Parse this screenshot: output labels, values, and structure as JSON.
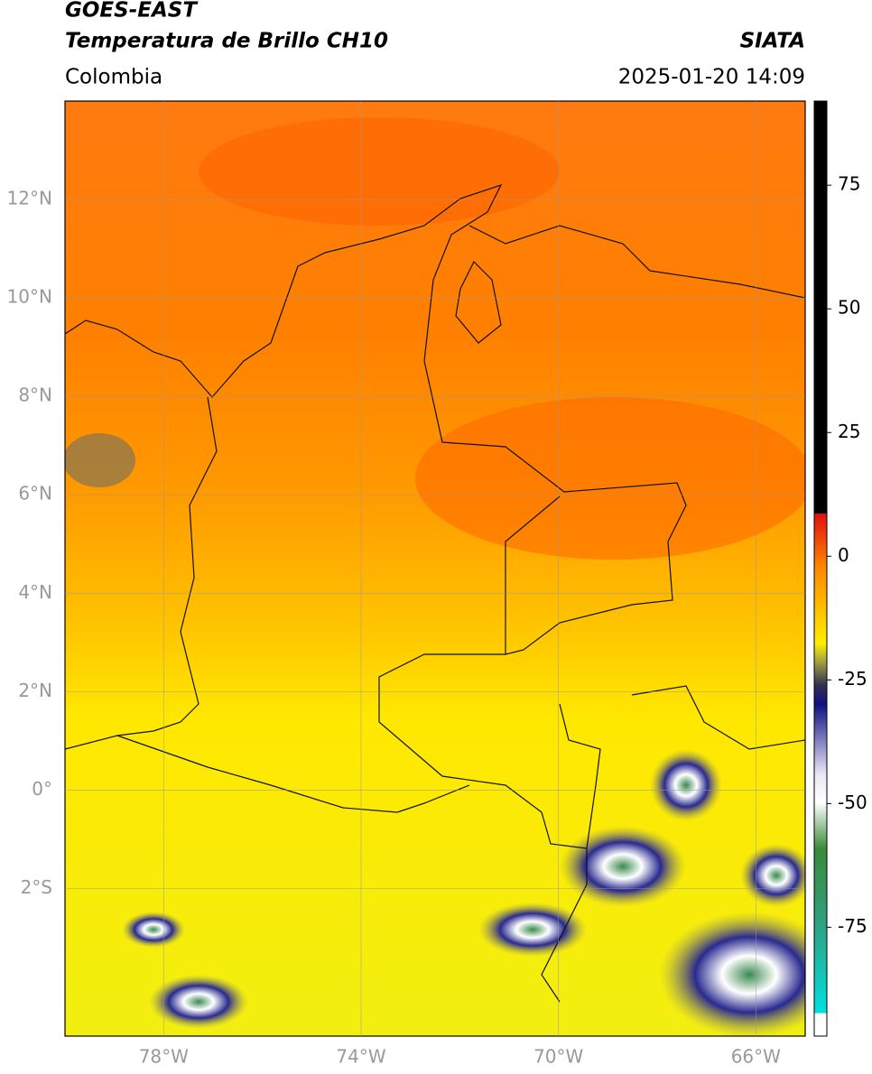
{
  "header": {
    "title": "GOES-EAST",
    "subtitle": "Temperatura de Brillo CH10",
    "source": "SIATA",
    "region": "Colombia",
    "timestamp": "2025-01-20 14:09"
  },
  "map": {
    "lonlim": [
      -80,
      -65
    ],
    "latlim": [
      -5,
      14
    ],
    "lat_ticks": [
      {
        "value": 12,
        "label": "12°N"
      },
      {
        "value": 10,
        "label": "10°N"
      },
      {
        "value": 8,
        "label": "8°N"
      },
      {
        "value": 6,
        "label": "6°N"
      },
      {
        "value": 4,
        "label": "4°N"
      },
      {
        "value": 2,
        "label": "2°N"
      },
      {
        "value": 0,
        "label": "0°"
      },
      {
        "value": -2,
        "label": "2°S"
      }
    ],
    "lon_ticks": [
      {
        "value": -78,
        "label": "78°W"
      },
      {
        "value": -74,
        "label": "74°W"
      },
      {
        "value": -70,
        "label": "70°W"
      },
      {
        "value": -66,
        "label": "66°W"
      }
    ]
  },
  "colorbar": {
    "range": [
      -97,
      92
    ],
    "ticks": [
      75,
      50,
      25,
      0,
      -25,
      -50,
      -75
    ]
  }
}
